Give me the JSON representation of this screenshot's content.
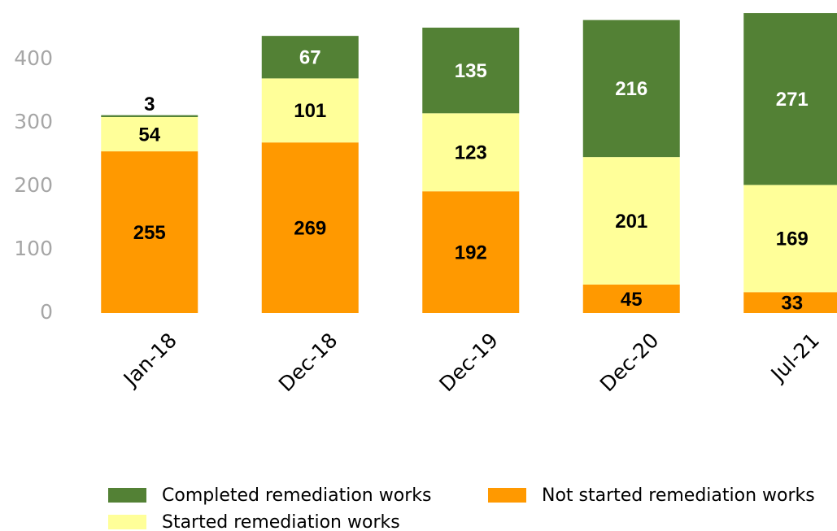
{
  "chart_data": {
    "type": "stacked_bar",
    "categories": [
      "Jan-18",
      "Dec-18",
      "Dec-19",
      "Dec-20",
      "Jul-21"
    ],
    "series": [
      {
        "name": "Not started remediation works",
        "color": "#ff9900",
        "values": [
          255,
          269,
          192,
          45,
          33
        ]
      },
      {
        "name": "Started remediation works",
        "color": "#ffff99",
        "values": [
          54,
          101,
          123,
          201,
          169
        ]
      },
      {
        "name": "Completed remediation works",
        "color": "#538135",
        "values": [
          3,
          67,
          135,
          216,
          271
        ]
      }
    ],
    "ylim": [
      0,
      480
    ],
    "yticks": [
      0,
      100,
      200,
      300,
      400
    ],
    "grid": false
  }
}
